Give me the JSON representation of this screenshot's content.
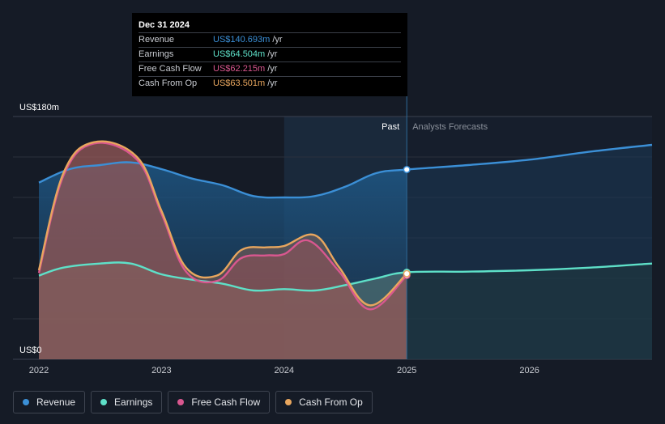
{
  "tooltip": {
    "date": "Dec 31 2024",
    "rows": [
      {
        "label": "Revenue",
        "value": "US$140.693m",
        "unit": "/yr",
        "color": "#3b8fd6"
      },
      {
        "label": "Earnings",
        "value": "US$64.504m",
        "unit": "/yr",
        "color": "#5ee0c8"
      },
      {
        "label": "Free Cash Flow",
        "value": "US$62.215m",
        "unit": "/yr",
        "color": "#d9578f"
      },
      {
        "label": "Cash From Op",
        "value": "US$63.501m",
        "unit": "/yr",
        "color": "#e8a65e"
      }
    ]
  },
  "legend": [
    {
      "label": "Revenue",
      "color": "#3b8fd6"
    },
    {
      "label": "Earnings",
      "color": "#5ee0c8"
    },
    {
      "label": "Free Cash Flow",
      "color": "#d9578f"
    },
    {
      "label": "Cash From Op",
      "color": "#e8a65e"
    }
  ],
  "chart_data": {
    "type": "area",
    "y_top_label": "US$180m",
    "y_bottom_label": "US$0",
    "ylim": [
      0,
      180
    ],
    "xlim": [
      2022.0,
      2027.0
    ],
    "x_ticks": [
      {
        "value": 2022.0,
        "label": "2022"
      },
      {
        "value": 2023.0,
        "label": "2023"
      },
      {
        "value": 2024.0,
        "label": "2024"
      },
      {
        "value": 2025.0,
        "label": "2025"
      },
      {
        "value": 2026.0,
        "label": "2026"
      }
    ],
    "past_label": "Past",
    "forecast_label": "Analysts Forecasts",
    "divider_x": 2025.0,
    "highlight_start_x": 2024.0,
    "series": [
      {
        "name": "Revenue",
        "color": "#3b8fd6",
        "points": [
          [
            2022.0,
            131
          ],
          [
            2022.25,
            141
          ],
          [
            2022.5,
            144
          ],
          [
            2022.75,
            146
          ],
          [
            2023.0,
            141
          ],
          [
            2023.25,
            134
          ],
          [
            2023.5,
            129
          ],
          [
            2023.75,
            121
          ],
          [
            2024.0,
            120
          ],
          [
            2024.25,
            121
          ],
          [
            2024.5,
            128
          ],
          [
            2024.75,
            138
          ],
          [
            2025.0,
            140.693
          ],
          [
            2025.5,
            144
          ],
          [
            2026.0,
            148
          ],
          [
            2026.5,
            154
          ],
          [
            2027.0,
            159
          ]
        ]
      },
      {
        "name": "Earnings",
        "color": "#5ee0c8",
        "points": [
          [
            2022.0,
            62
          ],
          [
            2022.2,
            68
          ],
          [
            2022.5,
            71
          ],
          [
            2022.75,
            71
          ],
          [
            2023.0,
            63
          ],
          [
            2023.25,
            59
          ],
          [
            2023.5,
            56
          ],
          [
            2023.75,
            51
          ],
          [
            2024.0,
            52
          ],
          [
            2024.25,
            51
          ],
          [
            2024.5,
            55
          ],
          [
            2024.75,
            60
          ],
          [
            2025.0,
            64.504
          ],
          [
            2025.5,
            65
          ],
          [
            2026.0,
            66
          ],
          [
            2026.5,
            68
          ],
          [
            2027.0,
            71
          ]
        ]
      },
      {
        "name": "Free Cash Flow",
        "color": "#d9578f",
        "points": [
          [
            2022.0,
            64
          ],
          [
            2022.2,
            136
          ],
          [
            2022.45,
            160
          ],
          [
            2022.8,
            148
          ],
          [
            2023.0,
            108
          ],
          [
            2023.2,
            65
          ],
          [
            2023.45,
            58
          ],
          [
            2023.65,
            75
          ],
          [
            2023.85,
            77
          ],
          [
            2024.0,
            78
          ],
          [
            2024.2,
            88
          ],
          [
            2024.45,
            65
          ],
          [
            2024.7,
            37
          ],
          [
            2025.0,
            62.215
          ]
        ]
      },
      {
        "name": "Cash From Op",
        "color": "#e8a65e",
        "points": [
          [
            2022.0,
            66
          ],
          [
            2022.2,
            138
          ],
          [
            2022.45,
            161
          ],
          [
            2022.8,
            150
          ],
          [
            2023.0,
            110
          ],
          [
            2023.2,
            68
          ],
          [
            2023.45,
            62
          ],
          [
            2023.65,
            81
          ],
          [
            2023.85,
            83
          ],
          [
            2024.0,
            84
          ],
          [
            2024.25,
            92
          ],
          [
            2024.45,
            68
          ],
          [
            2024.7,
            40
          ],
          [
            2025.0,
            63.501
          ]
        ]
      }
    ]
  }
}
